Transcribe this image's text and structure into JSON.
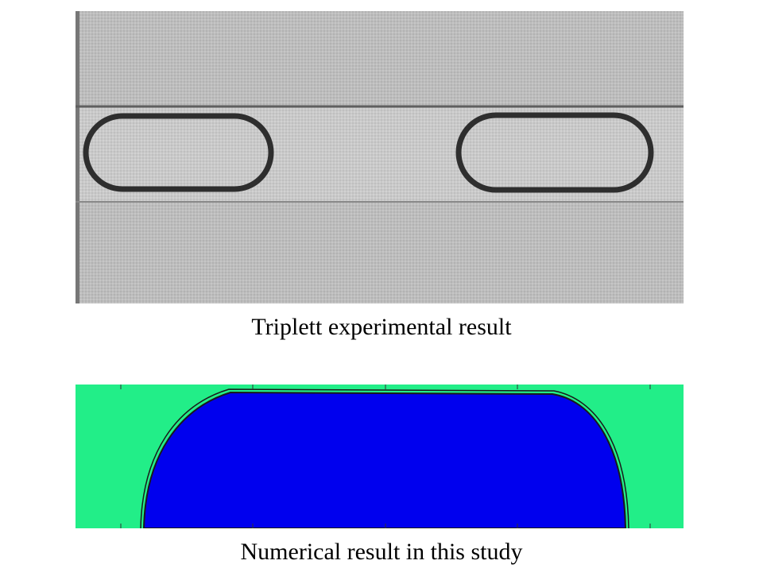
{
  "figure": {
    "experimental_caption": "Triplett experimental result",
    "numerical_caption": "Numerical result in this study"
  },
  "colors": {
    "experimental_background": "#bcbcbc",
    "channel_wall_line": "#5a5a5a",
    "bubble_outline": "#2e2e2e",
    "simulation_liquid": "#22ee88",
    "simulation_gas": "#0000ee",
    "interface_line": "#1a1a1a"
  }
}
